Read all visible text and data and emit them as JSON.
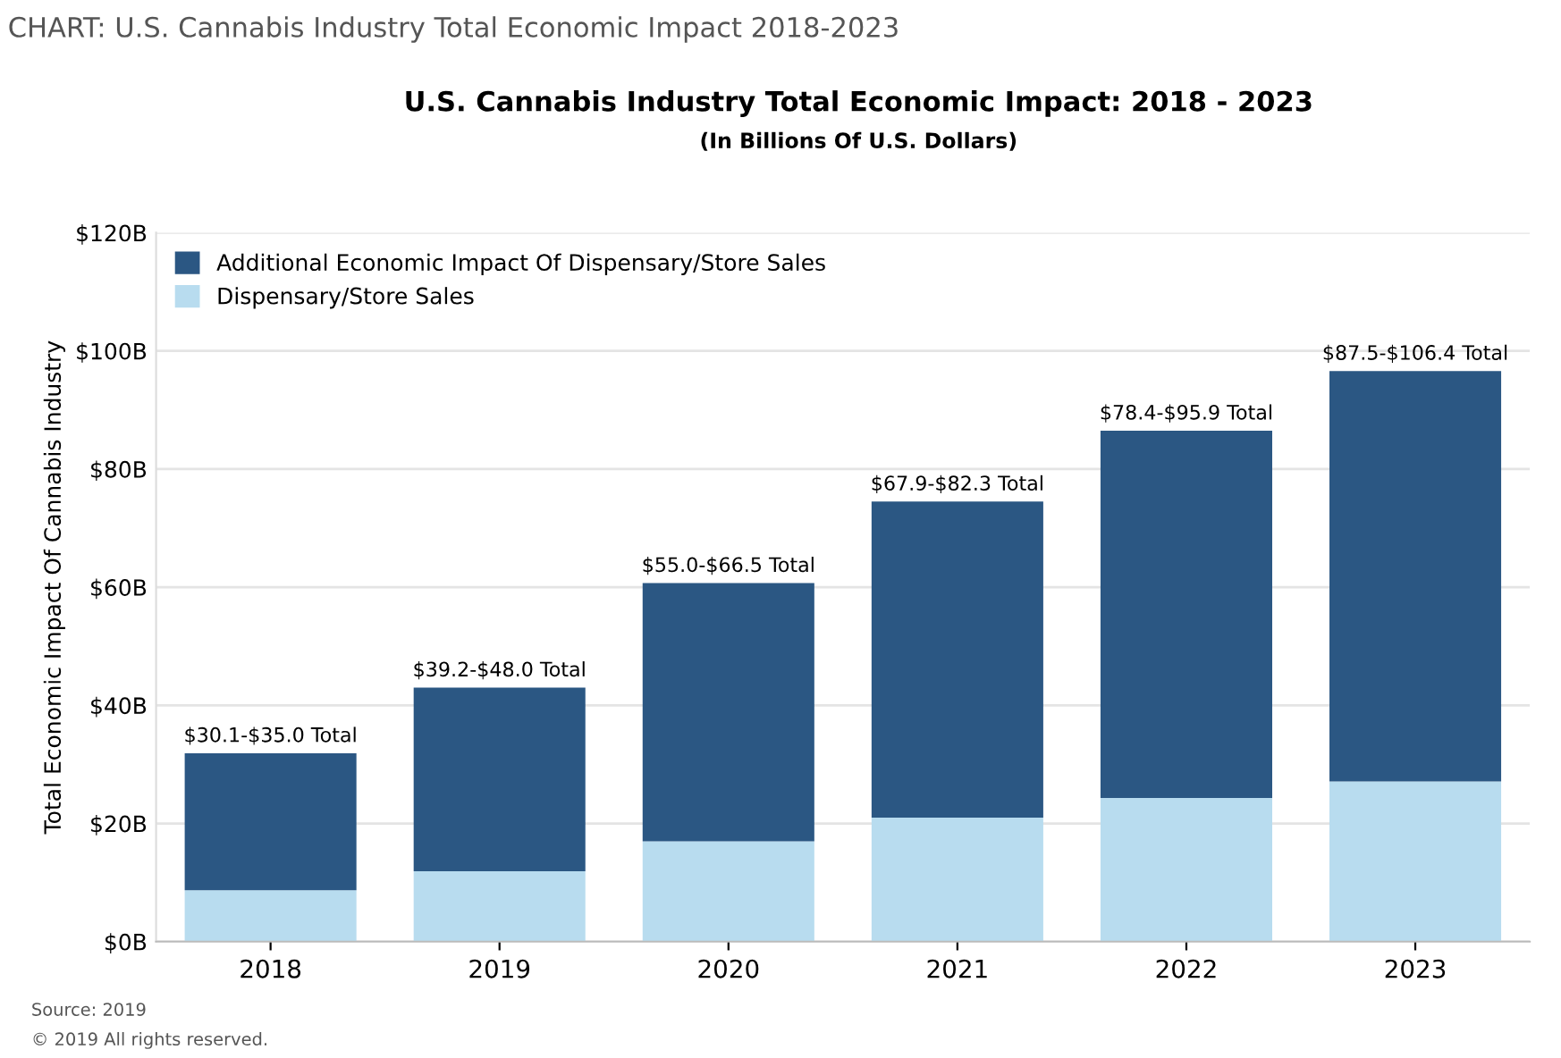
{
  "chart_data": {
    "type": "bar",
    "stacked": true,
    "title": "U.S. Cannabis Industry Total Economic Impact: 2018 - 2023",
    "subtitle": "(In Billions Of U.S. Dollars)",
    "ylabel": "Total Economic Impact Of Cannabis Industry",
    "categories": [
      "2018",
      "2019",
      "2020",
      "2021",
      "2022",
      "2023"
    ],
    "series": [
      {
        "name": "Dispensary/Store Sales",
        "color": "#b8dcef",
        "values": [
          8.7,
          11.9,
          17.0,
          21.0,
          24.3,
          27.1
        ]
      },
      {
        "name": "Additional Economic Impact Of Dispensary/Store Sales",
        "color": "#2b5783",
        "values": [
          23.2,
          31.1,
          43.7,
          53.5,
          62.2,
          69.5
        ]
      }
    ],
    "totals": [
      "$30.1-$35.0 Total",
      "$39.2-$48.0 Total",
      "$55.0-$66.5 Total",
      "$67.9-$82.3 Total",
      "$78.4-$95.9 Total",
      "$87.5-$106.4 Total"
    ],
    "ylim": [
      0,
      120
    ],
    "yticks": [
      {
        "value": 0,
        "label": "$0B"
      },
      {
        "value": 20,
        "label": "$20B"
      },
      {
        "value": 40,
        "label": "$40B"
      },
      {
        "value": 60,
        "label": "$60B"
      },
      {
        "value": 80,
        "label": "$80B"
      },
      {
        "value": 100,
        "label": "$100B"
      },
      {
        "value": 120,
        "label": "$120B"
      }
    ],
    "grid": "y",
    "legend": "top left",
    "annotations": [
      "CHART: U.S. Cannabis Industry Total Economic Impact 2018-2023",
      "Source: 2019",
      "© 2019 All rights reserved."
    ]
  }
}
